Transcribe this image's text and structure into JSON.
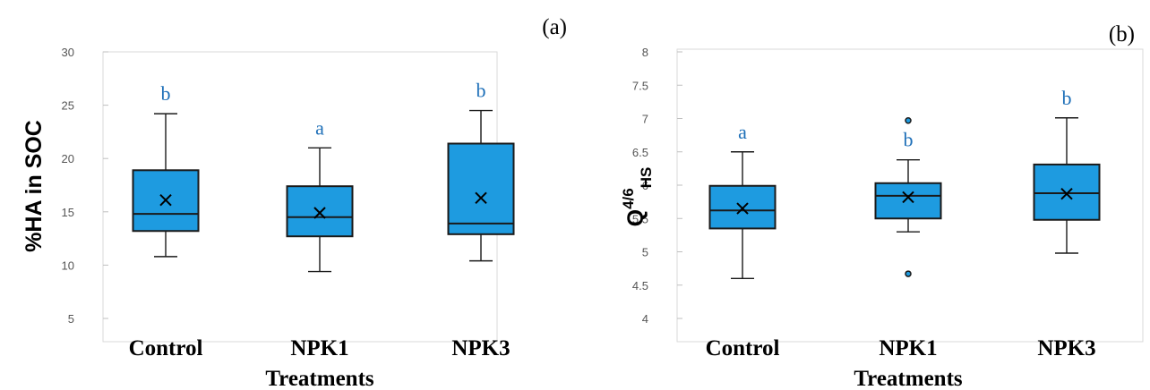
{
  "colors": {
    "box_fill": "#1e9be0",
    "box_stroke": "#1a1a1a",
    "letter": "#1d6fb8",
    "frame": "#d9d9d9"
  },
  "chart_data": [
    {
      "type": "box",
      "panel_label": "(a)",
      "ylabel": "%HA in SOC",
      "xlabel": "Treatments",
      "ylim": [
        5,
        30
      ],
      "yticks": [
        5,
        10,
        15,
        20,
        25,
        30
      ],
      "categories": [
        "Control",
        "NPK1",
        "NPK3"
      ],
      "boxes": [
        {
          "min": 10.8,
          "q1": 13.2,
          "median": 14.8,
          "q3": 18.9,
          "max": 24.2,
          "mean": 16.1,
          "outliers": [],
          "letter": "b"
        },
        {
          "min": 9.4,
          "q1": 12.7,
          "median": 14.5,
          "q3": 17.4,
          "max": 21.0,
          "mean": 14.9,
          "outliers": [],
          "letter": "a"
        },
        {
          "min": 10.4,
          "q1": 12.9,
          "median": 13.9,
          "q3": 21.4,
          "max": 24.5,
          "mean": 16.3,
          "outliers": [],
          "letter": "b"
        }
      ]
    },
    {
      "type": "box",
      "panel_label": "(b)",
      "ylabel_main": "Q",
      "ylabel_sup": "4/6",
      "ylabel_sub": "HS",
      "xlabel": "Treatments",
      "ylim": [
        4,
        8
      ],
      "yticks": [
        4,
        4.5,
        5,
        5.5,
        6,
        6.5,
        7,
        7.5,
        8
      ],
      "categories": [
        "Control",
        "NPK1",
        "NPK3"
      ],
      "boxes": [
        {
          "min": 4.6,
          "q1": 5.35,
          "median": 5.62,
          "q3": 5.99,
          "max": 6.5,
          "mean": 5.65,
          "outliers": [],
          "letter": "a"
        },
        {
          "min": 5.3,
          "q1": 5.5,
          "median": 5.84,
          "q3": 6.03,
          "max": 6.38,
          "mean": 5.82,
          "outliers": [
            6.97,
            4.67
          ],
          "letter": "b"
        },
        {
          "min": 4.98,
          "q1": 5.48,
          "median": 5.88,
          "q3": 6.31,
          "max": 7.01,
          "mean": 5.87,
          "outliers": [],
          "letter": "b"
        }
      ]
    }
  ]
}
